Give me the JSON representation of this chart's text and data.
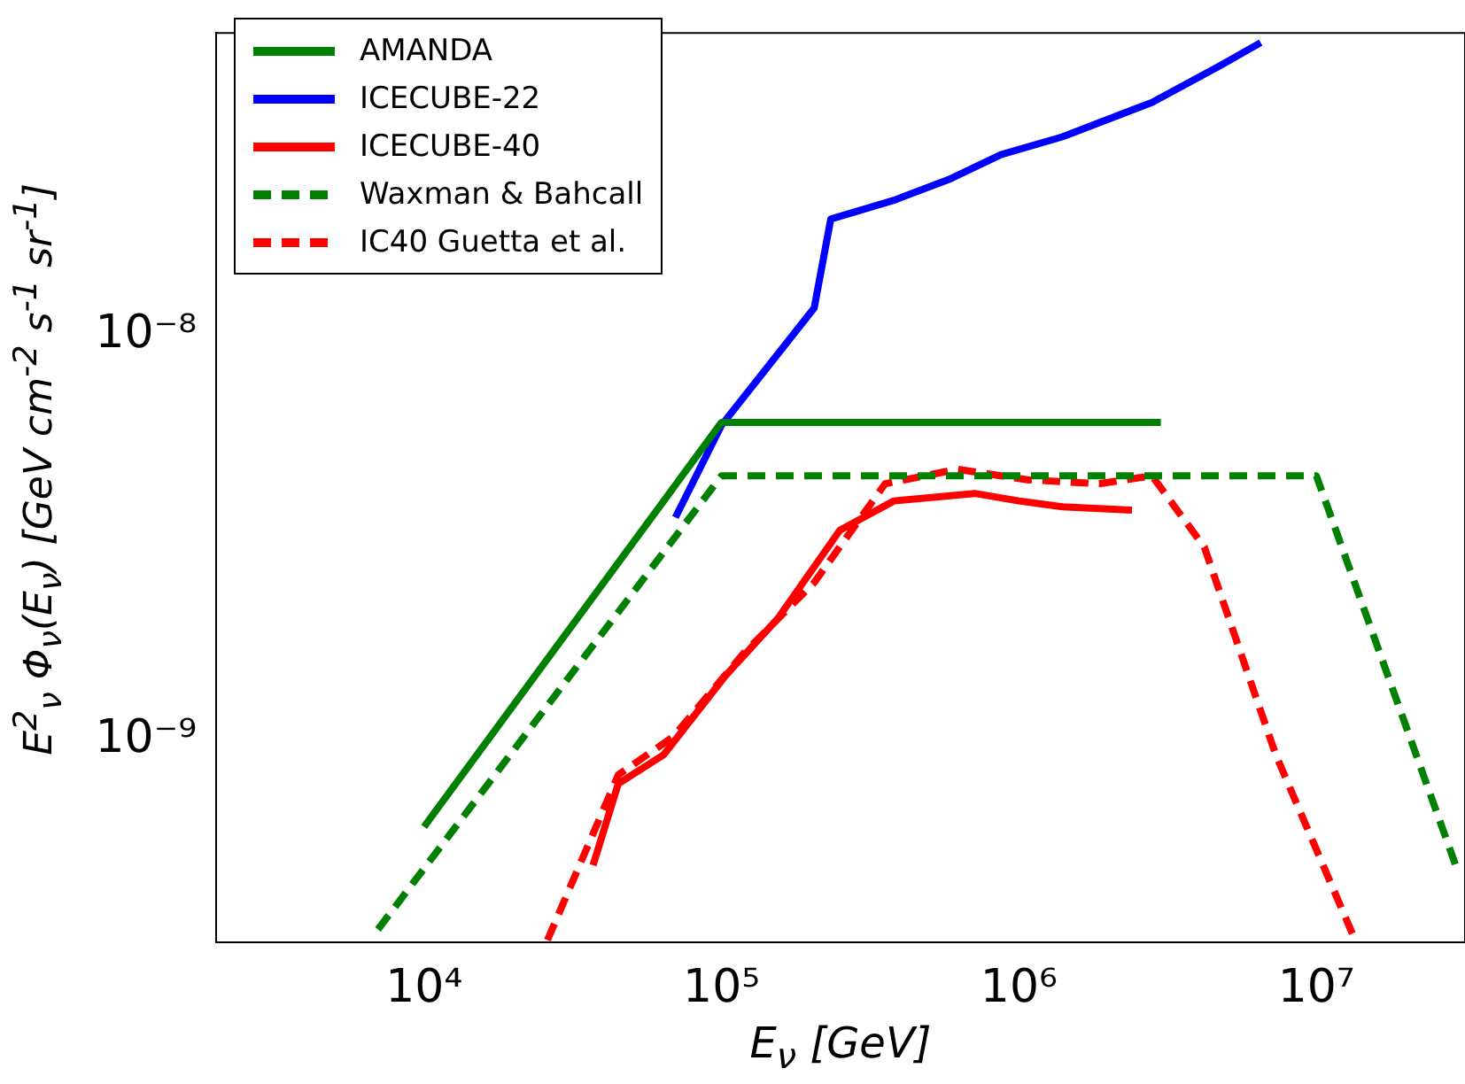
{
  "chart_data": {
    "type": "line",
    "xlabel": "E$_{ν}$  [GeV]",
    "ylabel": "E$^{2}$$_{ν}$  Φ$_{ν}$(E$_{ν}$)  [GeV cm$^{-2}$ s$^{-1}$ sr$^{-1}$]",
    "log": "xy",
    "xlim": [
      2000,
      31600000
    ],
    "ylim": [
      3.16e-10,
      5.6e-08
    ],
    "xticks": [
      {
        "value": 10000,
        "label": "10⁴"
      },
      {
        "value": 100000,
        "label": "10⁵"
      },
      {
        "value": 1000000,
        "label": "10⁶"
      },
      {
        "value": 10000000,
        "label": "10⁷"
      }
    ],
    "yticks": [
      {
        "value": 1e-09,
        "label": "10⁻⁹"
      },
      {
        "value": 1e-08,
        "label": "10⁻⁸"
      }
    ],
    "grid": false,
    "legend": "top left",
    "series": [
      {
        "name": "AMANDA",
        "color": "#008000",
        "line_style": "solid",
        "x": [
          10000,
          100000,
          3000000
        ],
        "values": [
          6.1e-10,
          6.1e-09,
          6.1e-09
        ]
      },
      {
        "name": "ICECUBE-22",
        "color": "#0000ff",
        "line_style": "solid",
        "x": [
          70000,
          100000,
          205000,
          233000,
          380000,
          580000,
          870000,
          1400000,
          2800000,
          4800000,
          6500000
        ],
        "values": [
          3.55e-09,
          6e-09,
          1.17e-08,
          1.94e-08,
          2.16e-08,
          2.43e-08,
          2.8e-08,
          3.1e-08,
          3.77e-08,
          4.67e-08,
          5.3e-08
        ]
      },
      {
        "name": "ICECUBE-40",
        "color": "#ff0000",
        "line_style": "solid",
        "x": [
          37000,
          45000,
          64000,
          103000,
          155000,
          250000,
          380000,
          710000,
          1000000,
          1400000,
          2400000
        ],
        "values": [
          4.9e-10,
          7.8e-10,
          9.2e-10,
          1.44e-09,
          2e-09,
          3.3e-09,
          3.9e-09,
          4.07e-09,
          3.9e-09,
          3.77e-09,
          3.7e-09
        ]
      },
      {
        "name": "Waxman & Bahcall",
        "color": "#008000",
        "line_style": "dashed",
        "x": [
          7000,
          100000,
          10000000,
          30000000
        ],
        "values": [
          3.4e-10,
          4.5e-09,
          4.5e-09,
          4.7e-10
        ]
      },
      {
        "name": "IC40 Guetta et al.",
        "color": "#ff0000",
        "line_style": "dashed",
        "x": [
          26000,
          45000,
          69000,
          118000,
          205000,
          355000,
          620000,
          1070000,
          1860000,
          2800000,
          4200000,
          7300000,
          13500000
        ],
        "values": [
          3.2e-10,
          8.2e-10,
          1.02e-09,
          1.63e-09,
          2.45e-09,
          4.3e-09,
          4.67e-09,
          4.4e-09,
          4.3e-09,
          4.5e-09,
          3e-09,
          9.2e-10,
          3.2e-10
        ]
      }
    ]
  }
}
